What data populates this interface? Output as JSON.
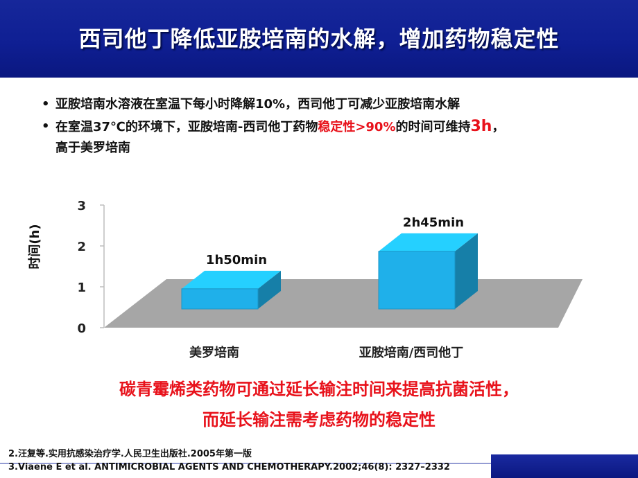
{
  "slide": {
    "title": "西司他丁降低亚胺培南的水解，增加药物稳定性"
  },
  "bullets": [
    {
      "dot": "•",
      "text": "亚胺培南水溶液在室温下每小时降解10%，西司他丁可减少亚胺培南水解"
    },
    {
      "dot": "•",
      "pre": "在室温37℃的环境下，亚胺培南-西司他丁药物",
      "highlight": "稳定性>90%",
      "mid": "的时间可维持",
      "highlight2": "3h",
      "post": "，",
      "line2": "高于美罗培南"
    }
  ],
  "chart_data": {
    "type": "bar",
    "ylabel": "时间(h)",
    "ylim": [
      0,
      3
    ],
    "yticks": [
      "0",
      "1",
      "2",
      "3"
    ],
    "categories": [
      "美罗培南",
      "亚胺培南/西司他丁"
    ],
    "values": [
      1.833,
      2.75
    ],
    "data_labels": [
      "1h50min",
      "2h45min"
    ],
    "bar_color": "#1fb0ea",
    "floor_color": "#a6a6a6",
    "grid": false
  },
  "conclusion": {
    "line1": "碳青霉烯类药物可通过延长输注时间来提高抗菌活性，",
    "line2": "而延长输注需考虑药物的稳定性"
  },
  "references": [
    "2.汪复等.实用抗感染治疗学.人民卫生出版社.2005年第一版",
    "3.Viaene E et al. ANTIMICROBIAL AGENTS AND CHEMOTHERAPY.2002;46(8): 2327–2332"
  ]
}
